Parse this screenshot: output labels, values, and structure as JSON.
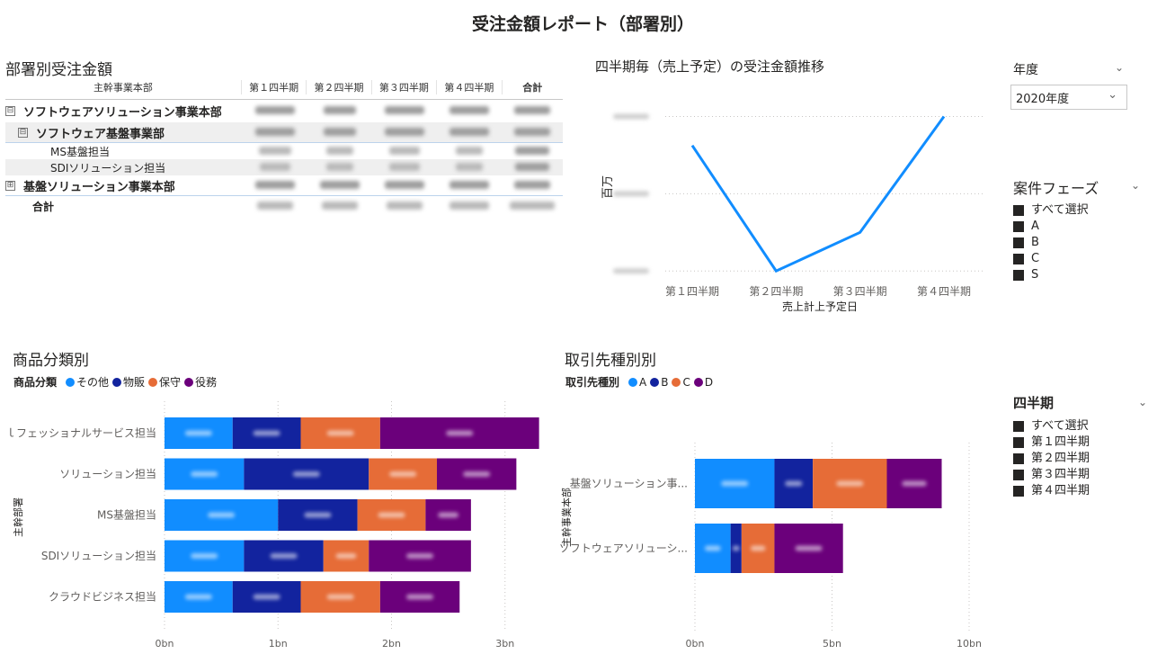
{
  "report_title": "受注金額レポート（部署別）",
  "matrix": {
    "title": "部署別受注金額",
    "col_header_label": "主幹事業本部",
    "columns": [
      "第１四半期",
      "第２四半期",
      "第３四半期",
      "第４四半期",
      "合計"
    ],
    "rows": [
      {
        "label": "ソフトウェアソリューション事業本部",
        "toggle": "⊟"
      },
      {
        "label": "ソフトウェア基盤事業部",
        "toggle": "⊟"
      },
      {
        "label": "MS基盤担当"
      },
      {
        "label": "SDIソリューション担当"
      },
      {
        "label": "基盤ソリューション事業本部",
        "toggle": "⊞"
      },
      {
        "label": "合計"
      }
    ]
  },
  "line_chart": {
    "title": "四半期毎（売上予定）の受注金額推移",
    "xlabel": "売上計上予定日",
    "ylabel": "百万"
  },
  "bar_left": {
    "title": "商品分類別",
    "legend_title": "商品分類",
    "legend": [
      "その他",
      "物販",
      "保守",
      "役務"
    ],
    "y_axis_title": "主幹部署"
  },
  "bar_right": {
    "title": "取引先種別別",
    "legend_title": "取引先種別",
    "legend": [
      "A",
      "B",
      "C",
      "D"
    ],
    "y_axis_title": "主幹事業本部"
  },
  "slicers": {
    "year": {
      "title": "年度",
      "value": "2020年度"
    },
    "phase": {
      "title": "案件フェーズ",
      "items": [
        "すべて選択",
        "A",
        "B",
        "C",
        "S"
      ]
    },
    "quarter": {
      "title": "四半期",
      "items": [
        "すべて選択",
        "第１四半期",
        "第２四半期",
        "第３四半期",
        "第４四半期"
      ]
    }
  },
  "colors": {
    "s1": "#118dff",
    "s2": "#12239e",
    "s3": "#e66c37",
    "s4": "#6b007b",
    "line": "#118dff"
  },
  "chart_data": [
    {
      "type": "line",
      "title": "四半期毎（売上予定）の受注金額推移",
      "xlabel": "売上計上予定日",
      "ylabel": "百万",
      "categories": [
        "第１四半期",
        "第２四半期",
        "第３四半期",
        "第４四半期"
      ],
      "series": [
        {
          "values": [
            2100,
            800,
            1200,
            2400
          ]
        }
      ],
      "ylim": [
        700,
        2600
      ],
      "grid": true
    },
    {
      "type": "bar",
      "orientation": "horizontal",
      "stacked": true,
      "title": "商品分類別",
      "ylabel": "主幹部署",
      "categories": [
        "ｌフェッショナルサービス担当",
        "ソリューション担当",
        "MS基盤担当",
        "SDIソリューション担当",
        "クラウドビジネス担当"
      ],
      "series": [
        {
          "name": "その他",
          "values": [
            0.6,
            0.7,
            1.0,
            0.7,
            0.6
          ]
        },
        {
          "name": "物販",
          "values": [
            0.6,
            1.1,
            0.7,
            0.7,
            0.6
          ]
        },
        {
          "name": "保守",
          "values": [
            0.7,
            0.6,
            0.6,
            0.4,
            0.7
          ]
        },
        {
          "name": "役務",
          "values": [
            1.4,
            0.7,
            0.4,
            0.9,
            0.7
          ]
        }
      ],
      "xticks": [
        "0bn",
        "1bn",
        "2bn",
        "3bn"
      ],
      "xlim": [
        0,
        3.2
      ],
      "grid": true
    },
    {
      "type": "bar",
      "orientation": "horizontal",
      "stacked": true,
      "title": "取引先種別別",
      "ylabel": "主幹事業本部",
      "categories": [
        "基盤ソリューション事...",
        "ソフトウェアソリューシ..."
      ],
      "series": [
        {
          "name": "A",
          "values": [
            2.9,
            1.3
          ]
        },
        {
          "name": "B",
          "values": [
            1.4,
            0.4
          ]
        },
        {
          "name": "C",
          "values": [
            2.7,
            1.2
          ]
        },
        {
          "name": "D",
          "values": [
            2.0,
            2.5
          ]
        }
      ],
      "xticks": [
        "0bn",
        "5bn",
        "10bn"
      ],
      "xlim": [
        0,
        10
      ],
      "grid": true
    }
  ]
}
